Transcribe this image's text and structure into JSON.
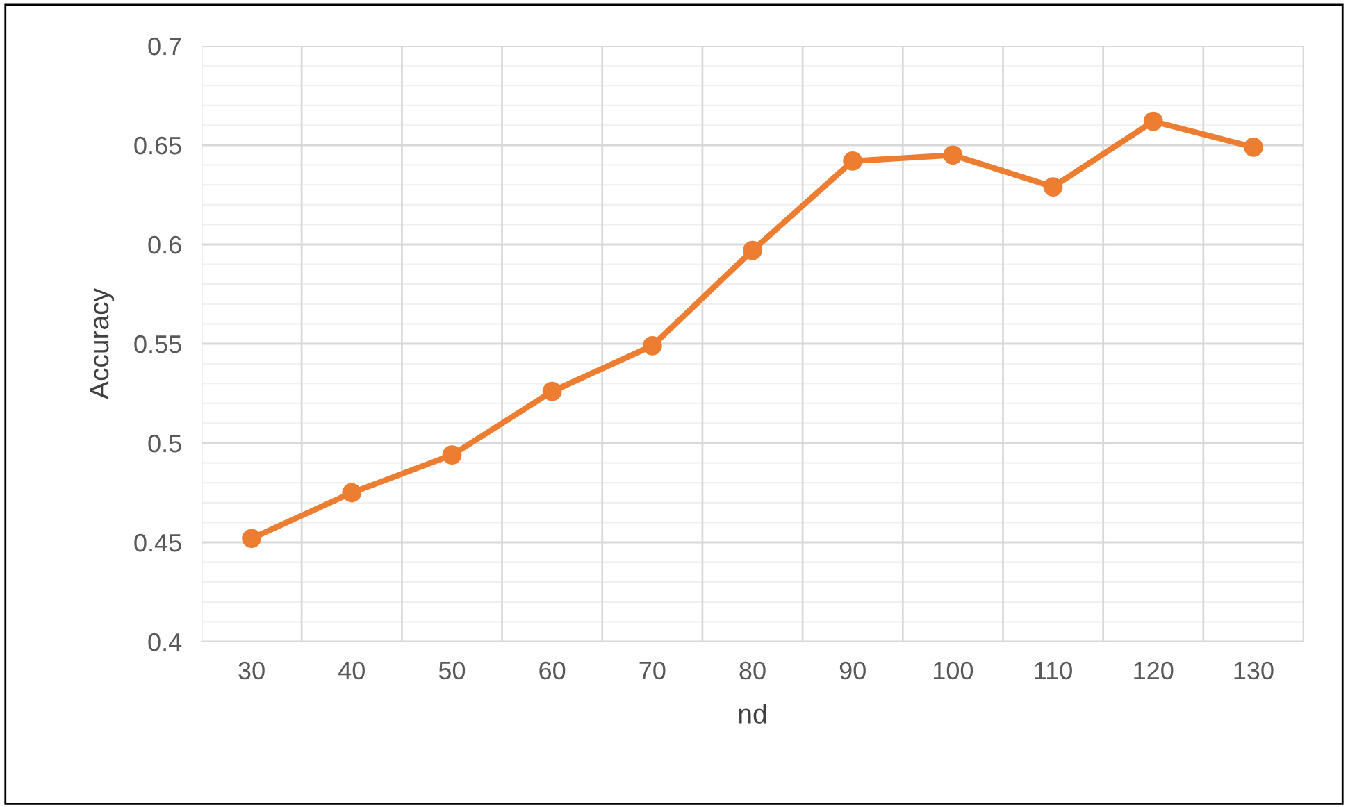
{
  "chart_data": {
    "type": "line",
    "xlabel": "nd",
    "ylabel": "Accuracy",
    "categories": [
      "30",
      "40",
      "50",
      "60",
      "70",
      "80",
      "90",
      "100",
      "110",
      "120",
      "130"
    ],
    "series": [
      {
        "color": "#ed7d31",
        "values": [
          0.452,
          0.475,
          0.494,
          0.526,
          0.549,
          0.597,
          0.642,
          0.645,
          0.629,
          0.662,
          0.649
        ]
      }
    ],
    "ylim": [
      0.4,
      0.7
    ],
    "yticks": [
      {
        "value": 0.4,
        "label": "0.4"
      },
      {
        "value": 0.45,
        "label": "0.45"
      },
      {
        "value": 0.5,
        "label": "0.5"
      },
      {
        "value": 0.55,
        "label": "0.55"
      },
      {
        "value": 0.6,
        "label": "0.6"
      },
      {
        "value": 0.65,
        "label": "0.65"
      },
      {
        "value": 0.7,
        "label": "0.7"
      }
    ],
    "grid": true,
    "marker": "circle",
    "line_style": "solid"
  }
}
